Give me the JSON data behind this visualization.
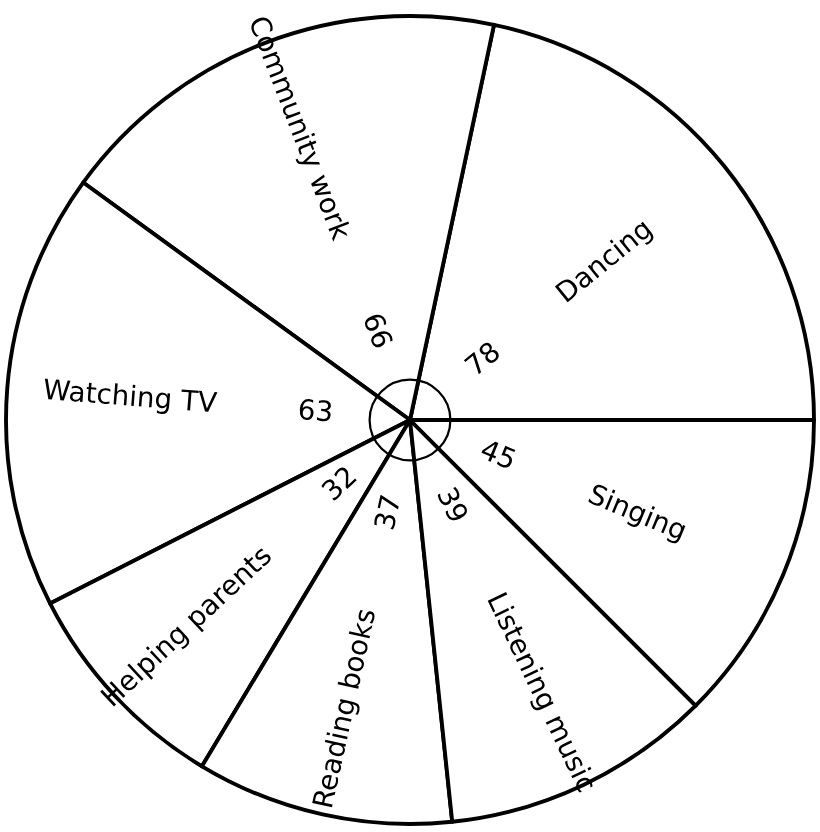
{
  "chart_data": {
    "type": "pie",
    "categories": [
      "Dancing",
      "Community work",
      "Watching TV",
      "Helping parents",
      "Reading books",
      "Listening music",
      "Singing"
    ],
    "values": [
      78,
      66,
      63,
      32,
      37,
      39,
      45
    ],
    "colors": [
      "#ffffff",
      "#ffffff",
      "#ffffff",
      "#ffffff",
      "#ffffff",
      "#ffffff",
      "#ffffff"
    ],
    "data_labels": true
  }
}
